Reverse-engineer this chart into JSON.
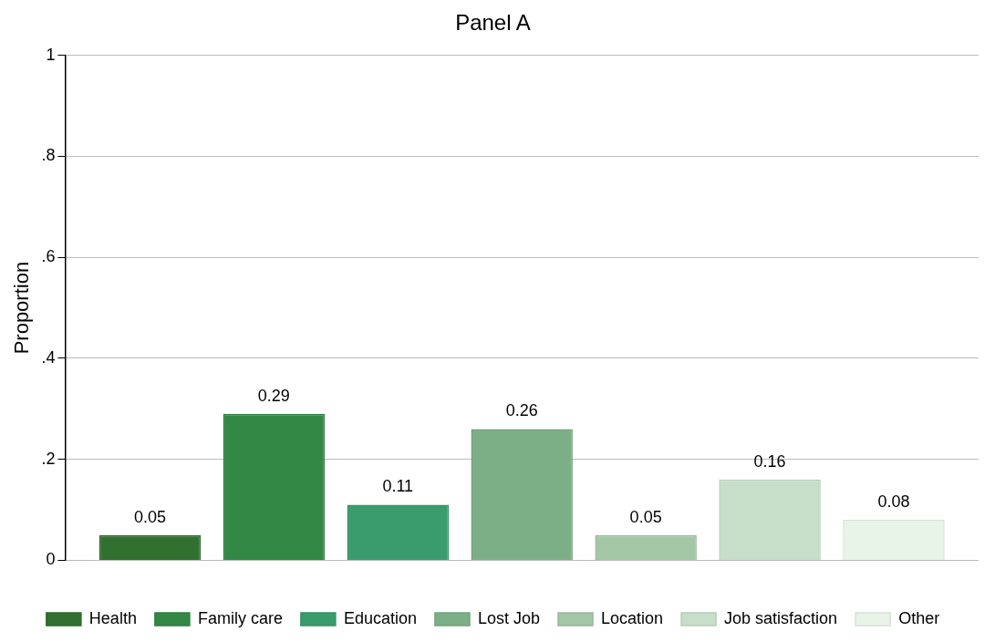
{
  "chart_data": {
    "type": "bar",
    "title": "Panel A",
    "ylabel": "Proportion",
    "categories": [
      null
    ],
    "series": [
      {
        "name": "Health",
        "color": "#32702f",
        "values": [
          0.05
        ]
      },
      {
        "name": "Family care",
        "color": "#338845",
        "values": [
          0.29
        ]
      },
      {
        "name": "Education",
        "color": "#3a9c6c",
        "values": [
          0.11
        ]
      },
      {
        "name": "Lost Job",
        "color": "#7daf87",
        "values": [
          0.26
        ]
      },
      {
        "name": "Location",
        "color": "#a4c7a6",
        "values": [
          0.05
        ]
      },
      {
        "name": "Job satisfaction",
        "color": "#c7dfc8",
        "values": [
          0.16
        ]
      },
      {
        "name": "Other",
        "color": "#e9f4e9",
        "values": [
          0.08
        ]
      }
    ],
    "ylim": [
      0,
      1
    ],
    "yticks": [
      0,
      {
        "value": 0.2,
        "label": ".2"
      },
      {
        "value": 0.4,
        "label": ".4"
      },
      {
        "value": 0.6,
        "label": ".6"
      },
      {
        "value": 0.8,
        "label": ".8"
      },
      1
    ],
    "grid": "y",
    "legend": "bottom",
    "data_labels": true
  }
}
